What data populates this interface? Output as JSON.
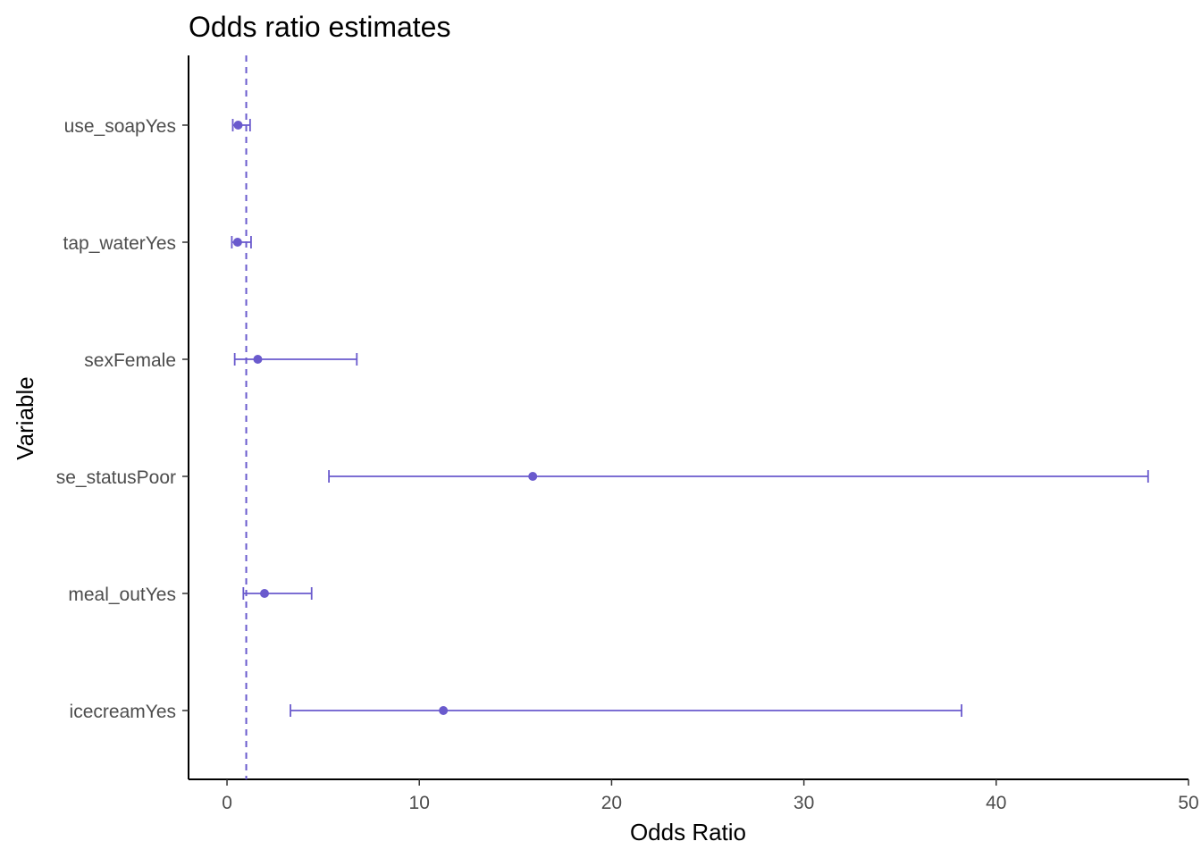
{
  "chart_data": {
    "type": "scatter",
    "subtype": "forest-plot",
    "title": "Odds ratio estimates",
    "xlabel": "Odds Ratio",
    "ylabel": "Variable",
    "xlim": [
      -2,
      50
    ],
    "x_ticks": [
      0,
      10,
      20,
      30,
      40,
      50
    ],
    "x_tick_labels": [
      "0",
      "10",
      "20",
      "30",
      "40",
      "50"
    ],
    "reference_line": 1,
    "reference_line_style": "dashed",
    "grid": false,
    "legend": "none",
    "color": "#6a5acd",
    "categories": [
      "use_soapYes",
      "tap_waterYes",
      "sexFemale",
      "se_statusPoor",
      "meal_outYes",
      "icecreamYes"
    ],
    "estimates": [
      0.58,
      0.55,
      1.6,
      15.9,
      1.95,
      11.25
    ],
    "ci_lower": [
      0.3,
      0.25,
      0.4,
      5.3,
      0.85,
      3.3
    ],
    "ci_upper": [
      1.2,
      1.25,
      6.75,
      47.9,
      4.4,
      38.2
    ]
  }
}
